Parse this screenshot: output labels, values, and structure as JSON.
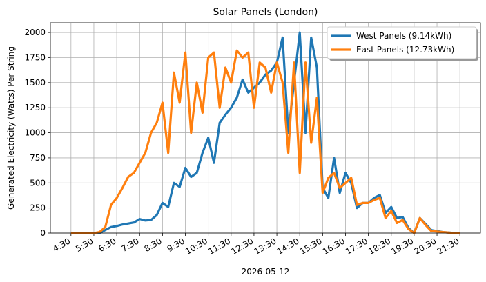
{
  "chart_data": {
    "type": "line",
    "title": "Solar Panels (London)",
    "x_label": "2026-05-12",
    "y_label": "Generated Electricity (Watts) Per String",
    "x": [
      4.5,
      4.75,
      5,
      5.25,
      5.5,
      5.75,
      6,
      6.25,
      6.5,
      6.75,
      7,
      7.25,
      7.5,
      7.75,
      8,
      8.25,
      8.5,
      8.75,
      9,
      9.25,
      9.5,
      9.75,
      10,
      10.25,
      10.5,
      10.75,
      11,
      11.25,
      11.5,
      11.75,
      12,
      12.25,
      12.5,
      12.75,
      13,
      13.25,
      13.5,
      13.75,
      14,
      14.25,
      14.5,
      14.75,
      15,
      15.25,
      15.5,
      15.75,
      16,
      16.25,
      16.5,
      16.75,
      17,
      17.25,
      17.5,
      17.75,
      18,
      18.25,
      18.5,
      18.75,
      19,
      19.25,
      19.5,
      19.75,
      20,
      20.25,
      20.5,
      20.75,
      21,
      21.25,
      21.5
    ],
    "series": [
      {
        "name": "West Panels (9.14kWh)",
        "color": "#1f77b4",
        "values": [
          0,
          0,
          0,
          0,
          0,
          0,
          30,
          60,
          70,
          85,
          95,
          105,
          140,
          125,
          130,
          180,
          300,
          260,
          500,
          460,
          650,
          560,
          600,
          800,
          950,
          700,
          1100,
          1180,
          1250,
          1350,
          1530,
          1400,
          1450,
          1500,
          1580,
          1620,
          1700,
          1950,
          1000,
          1500,
          2000,
          1000,
          1950,
          1650,
          450,
          350,
          750,
          400,
          600,
          500,
          250,
          300,
          300,
          350,
          380,
          200,
          260,
          150,
          160,
          50,
          0,
          150,
          90,
          30,
          20,
          10,
          5,
          0,
          0
        ]
      },
      {
        "name": "East Panels (12.73kWh)",
        "color": "#ff7f0e",
        "values": [
          0,
          0,
          0,
          0,
          0,
          10,
          60,
          280,
          350,
          450,
          560,
          600,
          700,
          800,
          1000,
          1100,
          1300,
          800,
          1600,
          1300,
          1800,
          1000,
          1500,
          1200,
          1750,
          1800,
          1250,
          1650,
          1500,
          1820,
          1750,
          1800,
          1250,
          1700,
          1650,
          1400,
          1700,
          1500,
          800,
          1700,
          600,
          1700,
          900,
          1350,
          400,
          550,
          600,
          450,
          500,
          550,
          280,
          300,
          300,
          330,
          350,
          150,
          220,
          100,
          130,
          40,
          0,
          150,
          80,
          20,
          15,
          10,
          5,
          0,
          0
        ]
      }
    ],
    "xlim": [
      3.6,
      22.4
    ],
    "xticks": [
      {
        "value": 4.5,
        "label": "4:30"
      },
      {
        "value": 5.5,
        "label": "5:30"
      },
      {
        "value": 6.5,
        "label": "6:30"
      },
      {
        "value": 7.5,
        "label": "7:30"
      },
      {
        "value": 8.5,
        "label": "8:30"
      },
      {
        "value": 9.5,
        "label": "9:30"
      },
      {
        "value": 10.5,
        "label": "10:30"
      },
      {
        "value": 11.5,
        "label": "11:30"
      },
      {
        "value": 12.5,
        "label": "12:30"
      },
      {
        "value": 13.5,
        "label": "13:30"
      },
      {
        "value": 14.5,
        "label": "14:30"
      },
      {
        "value": 15.5,
        "label": "15:30"
      },
      {
        "value": 16.5,
        "label": "16:30"
      },
      {
        "value": 17.5,
        "label": "17:30"
      },
      {
        "value": 18.5,
        "label": "18:30"
      },
      {
        "value": 19.5,
        "label": "19:30"
      },
      {
        "value": 20.5,
        "label": "20:30"
      },
      {
        "value": 21.5,
        "label": "21:30"
      }
    ],
    "ylim": [
      0,
      2097
    ],
    "yticks": [
      0,
      250,
      500,
      750,
      1000,
      1250,
      1500,
      1750,
      2000
    ],
    "grid": true,
    "legend": "upper right"
  }
}
